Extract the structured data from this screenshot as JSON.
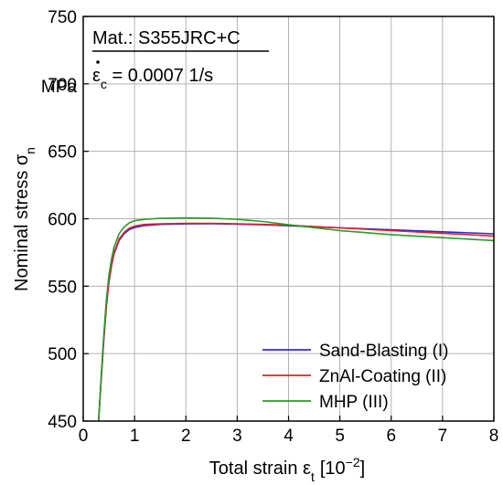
{
  "chart_data": {
    "type": "line",
    "xlabel_main": "Total strain ε",
    "xlabel_sub": "t",
    "xlabel_unit": "[10",
    "xlabel_exp": "−2",
    "xlabel_close": "]",
    "ylabel_main": "Nominal stress σ",
    "ylabel_sub": "n",
    "yunit": "MPa",
    "xlim": [
      0,
      8
    ],
    "ylim": [
      450,
      750
    ],
    "x_ticks": [
      "0",
      "1",
      "2",
      "3",
      "4",
      "5",
      "6",
      "7",
      "8"
    ],
    "y_ticks": [
      "450",
      "500",
      "550",
      "600",
      "650",
      "700",
      "750"
    ],
    "grid": true,
    "legend_position": "bottom-right",
    "annotation": {
      "material": "Mat.: S355JRC+C",
      "strain_rate_symbol": "ε",
      "strain_rate_sub": "c",
      "strain_rate_value": " = 0.0007 1/s"
    },
    "series": [
      {
        "name": "Sand-Blasting (I)",
        "color": "#2b2bd0",
        "x": [
          0.3,
          0.35,
          0.4,
          0.45,
          0.5,
          0.55,
          0.6,
          0.7,
          0.8,
          0.9,
          1.0,
          1.2,
          1.5,
          2.0,
          2.5,
          3.0,
          3.5,
          4.0,
          5.0,
          6.0,
          7.0,
          8.0
        ],
        "y": [
          450,
          480,
          510,
          535,
          553,
          565,
          574,
          584,
          589,
          592,
          593.5,
          595,
          595.8,
          596.2,
          596.3,
          596,
          595.5,
          594.8,
          593.3,
          591.8,
          590.3,
          588.8
        ]
      },
      {
        "name": "ZnAl-Coating (II)",
        "color": "#e02020",
        "x": [
          0.3,
          0.35,
          0.4,
          0.45,
          0.5,
          0.55,
          0.6,
          0.7,
          0.8,
          0.9,
          1.0,
          1.2,
          1.5,
          2.0,
          2.5,
          3.0,
          3.5,
          4.0,
          5.0,
          6.0,
          7.0,
          8.0
        ],
        "y": [
          450,
          481,
          511,
          536,
          554,
          566,
          575,
          585,
          590,
          593,
          594.5,
          595.8,
          596.3,
          596.6,
          596.6,
          596.3,
          595.8,
          595.2,
          593.2,
          591.2,
          589.2,
          587.2
        ]
      },
      {
        "name": "MHP (III)",
        "color": "#2a9a2a",
        "x": [
          0.3,
          0.35,
          0.4,
          0.45,
          0.5,
          0.55,
          0.6,
          0.7,
          0.8,
          0.9,
          1.0,
          1.2,
          1.5,
          2.0,
          2.5,
          3.0,
          3.5,
          4.0,
          5.0,
          6.0,
          7.0,
          8.0
        ],
        "y": [
          450,
          483,
          514,
          540,
          558,
          570,
          579,
          589,
          594,
          597,
          598.5,
          599.6,
          600.3,
          600.6,
          600.4,
          599.6,
          598,
          595.5,
          591.2,
          588.2,
          586,
          583.8
        ]
      }
    ]
  }
}
